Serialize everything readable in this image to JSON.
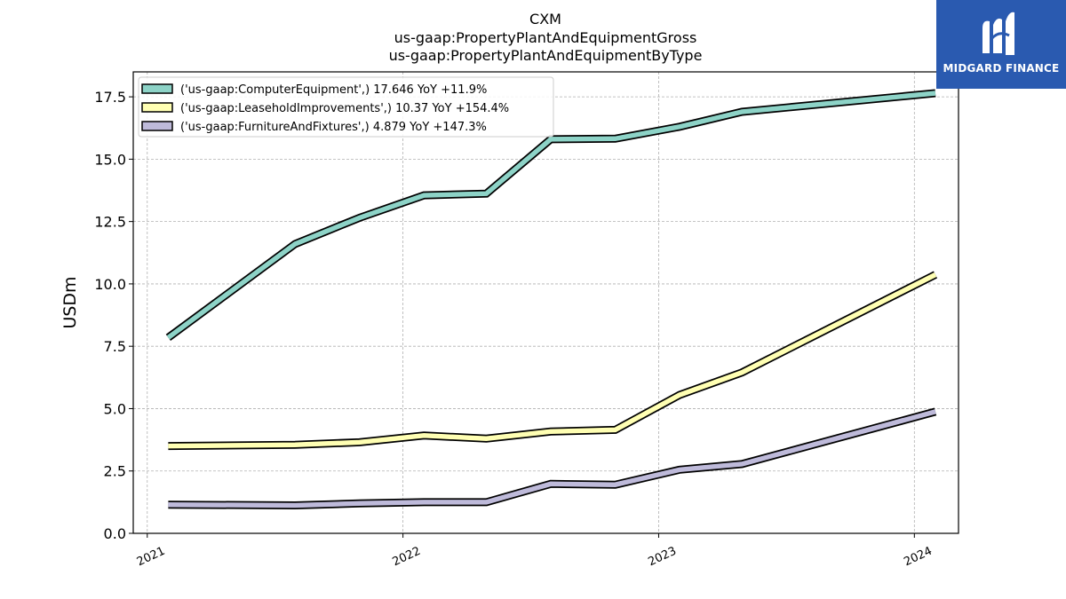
{
  "chart_data": {
    "type": "line",
    "title_lines": [
      "CXM",
      "us-gaap:PropertyPlantAndEquipmentGross",
      "us-gaap:PropertyPlantAndEquipmentByType"
    ],
    "ylabel": "USDm",
    "xlabel": "",
    "ylim": [
      0,
      18.5
    ],
    "yticks": [
      "0.0",
      "2.5",
      "5.0",
      "7.5",
      "10.0",
      "12.5",
      "15.0",
      "17.5"
    ],
    "xlim": [
      "2020-12-12",
      "2024-03-04"
    ],
    "xticks": [
      "2021",
      "2022",
      "2023",
      "2024"
    ],
    "grid": true,
    "legend_position": "top-left",
    "x": [
      "2021-01-31",
      "2021-07-31",
      "2021-10-31",
      "2022-01-31",
      "2022-04-30",
      "2022-07-31",
      "2022-10-31",
      "2023-01-31",
      "2023-04-30",
      "2024-01-31"
    ],
    "series": [
      {
        "name": "('us-gaap:ComputerEquipment',) 17.646 YoY +11.9%",
        "color": "#8dd3c7",
        "values": [
          7.85,
          11.6,
          12.65,
          13.55,
          13.62,
          15.8,
          15.82,
          16.3,
          16.9,
          17.646
        ]
      },
      {
        "name": "('us-gaap:LeaseholdImprovements',) 10.37 YoY +154.4%",
        "color": "#ffffb3",
        "values": [
          3.5,
          3.55,
          3.65,
          3.92,
          3.8,
          4.08,
          4.15,
          5.55,
          6.45,
          10.37
        ]
      },
      {
        "name": "('us-gaap:FurnitureAndFixtures',) 4.879 YoY +147.3%",
        "color": "#bebada",
        "values": [
          1.15,
          1.12,
          1.2,
          1.25,
          1.25,
          1.98,
          1.95,
          2.55,
          2.78,
          4.879
        ]
      }
    ]
  },
  "logo": {
    "text": "MIDGARD FINANCE",
    "bg_color": "#2a5ab0"
  }
}
